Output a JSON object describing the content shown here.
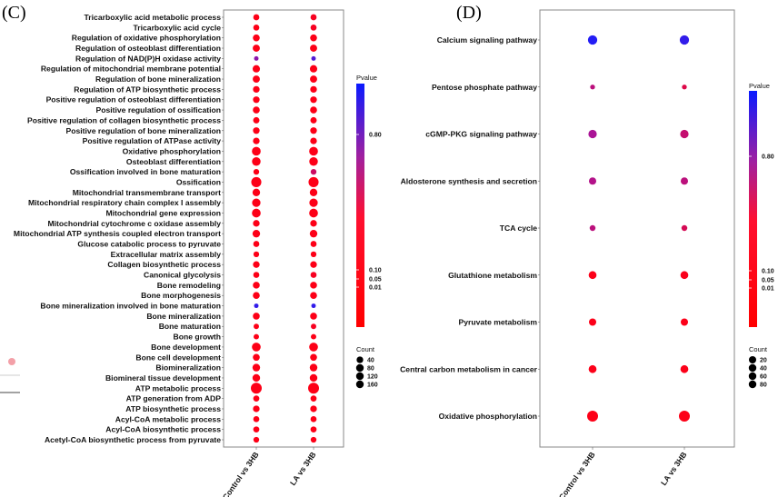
{
  "chart_data": [
    {
      "panel": "(C)",
      "type": "scatter",
      "categories": [
        "Tricarboxylic acid metabolic process",
        "Tricarboxylic acid cycle",
        "Regulation of oxidative phosphorylation",
        "Regulation of osteoblast differentiation",
        "Regulation of NAD(P)H oxidase activity",
        "Regulation of mitochondrial membrane potential",
        "Regulation of bone mineralization",
        "Regulation of ATP biosynthetic process",
        "Positive regulation of osteoblast differentiation",
        "Positive regulation of ossification",
        "Positive regulation of collagen biosynthetic process",
        "Positive regulation of bone mineralization",
        "Positive regulation of ATPase activity",
        "Oxidative phosphorylation",
        "Osteoblast differentiation",
        "Ossification involved in bone maturation",
        "Ossification",
        "Mitochondrial transmembrane transport",
        "Mitochondrial respiratory chain complex I assembly",
        "Mitochondrial gene expression",
        "Mitochondrial cytochrome c oxidase assembly",
        "Mitochondrial ATP synthesis coupled electron transport",
        "Glucose catabolic process to pyruvate",
        "Extracellular matrix assembly",
        "Collagen biosynthetic process",
        "Canonical glycolysis",
        "Bone remodeling",
        "Bone morphogenesis",
        "Bone mineralization involved in bone maturation",
        "Bone mineralization",
        "Bone maturation",
        "Bone growth",
        "Bone development",
        "Bone cell development",
        "Biomineralization",
        "Biomineral tissue development",
        "ATP metabolic process",
        "ATP generation from ADP",
        "ATP biosynthetic process",
        "Acyl-CoA metabolic process",
        "Acyl-CoA biosynthetic process",
        "Acetyl-CoA biosynthetic process from pyruvate"
      ],
      "groups": [
        "Control vs 3HB",
        "LA vs 3HB"
      ],
      "series": [
        {
          "group": "Control vs 3HB",
          "count": [
            30,
            30,
            45,
            50,
            10,
            55,
            50,
            40,
            40,
            45,
            35,
            40,
            40,
            90,
            85,
            25,
            130,
            60,
            80,
            90,
            40,
            60,
            30,
            25,
            40,
            30,
            45,
            45,
            10,
            45,
            20,
            20,
            90,
            45,
            60,
            60,
            160,
            30,
            40,
            30,
            30,
            25
          ],
          "pvalue": [
            0.01,
            0.01,
            0.01,
            0.01,
            0.6,
            0.01,
            0.01,
            0.01,
            0.01,
            0.01,
            0.01,
            0.01,
            0.01,
            0.01,
            0.01,
            0.01,
            0.01,
            0.01,
            0.01,
            0.01,
            0.01,
            0.01,
            0.01,
            0.01,
            0.01,
            0.01,
            0.01,
            0.01,
            0.9,
            0.01,
            0.01,
            0.01,
            0.01,
            0.01,
            0.01,
            0.01,
            0.01,
            0.01,
            0.01,
            0.01,
            0.01,
            0.01
          ]
        },
        {
          "group": "LA vs 3HB",
          "count": [
            30,
            30,
            45,
            50,
            10,
            55,
            50,
            40,
            40,
            45,
            35,
            40,
            40,
            90,
            85,
            25,
            130,
            60,
            80,
            90,
            40,
            60,
            30,
            25,
            40,
            30,
            45,
            45,
            10,
            45,
            20,
            20,
            90,
            45,
            60,
            60,
            160,
            30,
            40,
            30,
            30,
            25
          ],
          "pvalue": [
            0.05,
            0.05,
            0.01,
            0.01,
            0.8,
            0.01,
            0.01,
            0.01,
            0.01,
            0.01,
            0.01,
            0.01,
            0.01,
            0.01,
            0.01,
            0.3,
            0.01,
            0.01,
            0.01,
            0.01,
            0.01,
            0.01,
            0.01,
            0.01,
            0.01,
            0.05,
            0.01,
            0.01,
            0.9,
            0.01,
            0.05,
            0.01,
            0.01,
            0.01,
            0.01,
            0.01,
            0.01,
            0.01,
            0.01,
            0.01,
            0.01,
            0.01
          ]
        }
      ],
      "legend_color": {
        "title": "Pvalue",
        "ticks": [
          "0.80",
          "0.10",
          "0.05",
          "0.01"
        ],
        "colors": [
          "#ff0000",
          "#0a1aff"
        ]
      },
      "legend_size": {
        "title": "Count",
        "values": [
          40,
          80,
          120,
          160
        ]
      }
    },
    {
      "panel": "(D)",
      "type": "scatter",
      "categories": [
        "Calcium signaling pathway",
        "Pentose phosphate pathway",
        "cGMP-PKG signaling pathway",
        "Aldosterone synthesis and secretion",
        "TCA cycle",
        "Glutathione metabolism",
        "Pyruvate metabolism",
        "Central carbon metabolism in cancer",
        "Oxidative phosphorylation"
      ],
      "groups": [
        "Control vs 3HB",
        "LA vs 3HB"
      ],
      "series": [
        {
          "group": "Control vs 3HB",
          "count": [
            40,
            5,
            30,
            20,
            10,
            25,
            20,
            25,
            60
          ],
          "pvalue": [
            0.95,
            0.4,
            0.5,
            0.45,
            0.4,
            0.02,
            0.02,
            0.02,
            0.01
          ]
        },
        {
          "group": "LA vs 3HB",
          "count": [
            40,
            5,
            30,
            20,
            10,
            25,
            20,
            25,
            60
          ],
          "pvalue": [
            0.9,
            0.2,
            0.35,
            0.4,
            0.25,
            0.03,
            0.02,
            0.02,
            0.01
          ]
        }
      ],
      "legend_color": {
        "title": "Pvalue",
        "ticks": [
          "0.80",
          "0.10",
          "0.05",
          "0.01"
        ],
        "colors": [
          "#ff0000",
          "#0a1aff"
        ]
      },
      "legend_size": {
        "title": "Count",
        "values": [
          20,
          40,
          60,
          80
        ]
      }
    }
  ]
}
